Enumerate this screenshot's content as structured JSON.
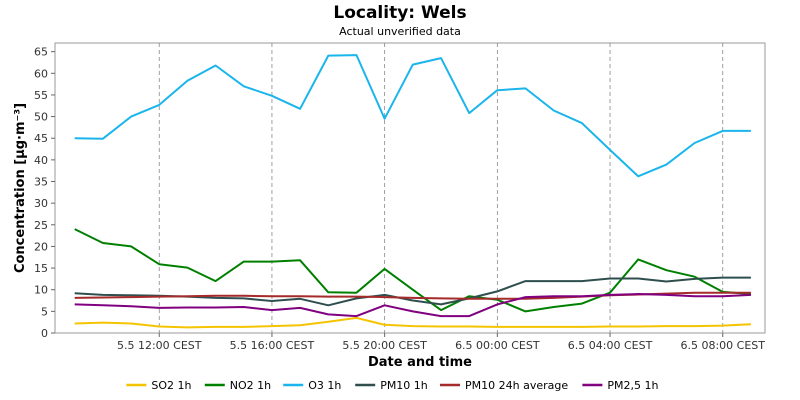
{
  "chart_data": {
    "type": "line",
    "title": "Locality: Wels",
    "subtitle": "Actual unverified data",
    "xlabel": "Date and time",
    "ylabel": "Concentration [µg·m⁻³]",
    "ylim": [
      0,
      67
    ],
    "yticks": [
      0,
      5,
      10,
      15,
      20,
      25,
      30,
      35,
      40,
      45,
      50,
      55,
      60,
      65
    ],
    "x_hours": [
      9,
      10,
      11,
      12,
      13,
      14,
      15,
      16,
      17,
      18,
      19,
      20,
      21,
      22,
      23,
      24,
      25,
      26,
      27,
      28,
      29,
      30,
      31,
      32,
      33
    ],
    "xlim_hours": [
      8.3,
      33.5
    ],
    "xticks": [
      {
        "hour": 12,
        "label": "5.5 12:00 CEST"
      },
      {
        "hour": 16,
        "label": "5.5 16:00 CEST"
      },
      {
        "hour": 20,
        "label": "5.5 20:00 CEST"
      },
      {
        "hour": 24,
        "label": "6.5 00:00 CEST"
      },
      {
        "hour": 28,
        "label": "6.5 04:00 CEST"
      },
      {
        "hour": 32,
        "label": "6.5 08:00 CEST"
      }
    ],
    "grid": true,
    "legend_position": "bottom",
    "series": [
      {
        "name": "SO2 1h",
        "color": "#f5c400",
        "values": [
          2.2,
          2.4,
          2.2,
          1.5,
          1.3,
          1.4,
          1.4,
          1.6,
          1.8,
          2.6,
          3.5,
          1.9,
          1.6,
          1.5,
          1.5,
          1.4,
          1.4,
          1.4,
          1.4,
          1.5,
          1.5,
          1.6,
          1.6,
          1.7,
          2.0
        ]
      },
      {
        "name": "NO2 1h",
        "color": "#008000",
        "values": [
          24.0,
          20.8,
          20.0,
          15.9,
          15.1,
          12.0,
          16.5,
          16.5,
          16.8,
          9.4,
          9.3,
          14.8,
          10.0,
          5.3,
          8.5,
          7.7,
          5.0,
          6.0,
          6.8,
          9.3,
          17.0,
          14.5,
          13.0,
          9.5,
          9.0
        ]
      },
      {
        "name": "O3 1h",
        "color": "#1ab5ec",
        "values": [
          45.0,
          44.9,
          50.0,
          52.7,
          58.3,
          61.8,
          57.0,
          54.8,
          51.8,
          64.1,
          64.2,
          49.5,
          62.0,
          63.5,
          50.8,
          56.1,
          56.5,
          51.4,
          48.5,
          42.3,
          36.2,
          38.9,
          43.9,
          46.7,
          46.7
        ]
      },
      {
        "name": "PM10 1h",
        "color": "#2f4f4f",
        "values": [
          9.2,
          8.8,
          8.7,
          8.6,
          8.4,
          8.1,
          8.0,
          7.4,
          7.9,
          6.4,
          8.0,
          8.8,
          7.5,
          6.6,
          8.0,
          9.6,
          12.0,
          12.0,
          12.0,
          12.6,
          12.6,
          11.9,
          12.5,
          12.8,
          12.8
        ]
      },
      {
        "name": "PM10 24h average",
        "color": "#a52a2a",
        "values": [
          8.1,
          8.2,
          8.3,
          8.4,
          8.5,
          8.6,
          8.6,
          8.5,
          8.5,
          8.4,
          8.4,
          8.3,
          8.1,
          8.0,
          7.9,
          7.9,
          7.9,
          8.1,
          8.4,
          8.7,
          8.9,
          9.1,
          9.3,
          9.3,
          9.3
        ]
      },
      {
        "name": "PM2,5 1h",
        "color": "#800080",
        "values": [
          6.6,
          6.4,
          6.2,
          5.8,
          5.9,
          5.9,
          6.0,
          5.3,
          5.8,
          4.3,
          3.9,
          6.4,
          5.0,
          3.9,
          3.9,
          6.6,
          8.3,
          8.5,
          8.5,
          8.8,
          9.0,
          8.8,
          8.5,
          8.5,
          8.8
        ]
      }
    ]
  }
}
